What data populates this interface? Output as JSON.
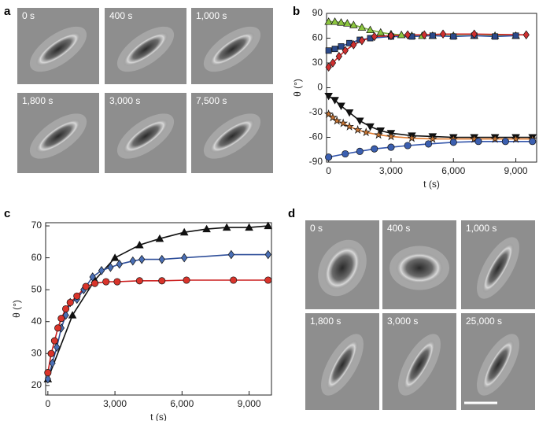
{
  "image_panels": [
    {
      "panel_label": "a",
      "frames": [
        "0 s",
        "400 s",
        "1,000 s",
        "1,800 s",
        "3,000 s",
        "7,500 s"
      ]
    },
    {
      "panel_label": "d",
      "frames": [
        "0 s",
        "400 s",
        "1,000 s",
        "1,800 s",
        "3,000 s",
        "25,000 s"
      ]
    }
  ],
  "chart_data": [
    {
      "type": "scatter",
      "panel_label": "b",
      "x_label": "t (s)",
      "y_label": "θ (°)",
      "xlim": [
        -100,
        10000
      ],
      "ylim": [
        -90,
        90
      ],
      "xticks": [
        0,
        {
          "value": 3000,
          "label": "3,000"
        },
        {
          "value": 6000,
          "label": "6,000"
        },
        {
          "value": 9000,
          "label": "9,000"
        }
      ],
      "yticks": [
        -90,
        -60,
        -30,
        0,
        30,
        60,
        90
      ],
      "series": [
        {
          "marker": "triangle-up",
          "color": "#8cc63f",
          "line_color": "#7cb342",
          "x": [
            0,
            300,
            600,
            900,
            1200,
            1600,
            2000,
            2500,
            3000,
            3500,
            4000,
            4500,
            5000,
            6000,
            7000,
            8000,
            9000
          ],
          "values": [
            80,
            80,
            79,
            78,
            76,
            73,
            70,
            67,
            65,
            64,
            63,
            63,
            63,
            63,
            63,
            63,
            63
          ]
        },
        {
          "marker": "square",
          "color": "#2c4a8a",
          "line_color": "#3355aa",
          "x": [
            0,
            300,
            600,
            1000,
            1500,
            2000,
            3000,
            4000,
            5000,
            6000,
            7000,
            8000,
            9000
          ],
          "values": [
            45,
            47,
            50,
            54,
            58,
            60,
            62,
            62,
            63,
            62,
            63,
            62,
            63
          ]
        },
        {
          "marker": "diamond",
          "color": "#d03030",
          "line_color": "#cc2222",
          "x": [
            0,
            200,
            500,
            800,
            1200,
            1600,
            2200,
            3000,
            3800,
            4600,
            5500,
            7000,
            9500
          ],
          "values": [
            25,
            30,
            38,
            45,
            52,
            57,
            62,
            63,
            64,
            64,
            65,
            65,
            64
          ]
        },
        {
          "marker": "triangle-down",
          "color": "#111111",
          "line_color": "#111111",
          "x": [
            0,
            300,
            600,
            1000,
            1500,
            2000,
            2500,
            3000,
            4000,
            5000,
            6000,
            7000,
            8000,
            9000,
            9800
          ],
          "values": [
            -10,
            -15,
            -22,
            -30,
            -40,
            -47,
            -52,
            -55,
            -58,
            -59,
            -60,
            -60,
            -60,
            -60,
            -60
          ]
        },
        {
          "marker": "star",
          "color": "#c87533",
          "line_color": "#e07b30",
          "x": [
            0,
            200,
            400,
            700,
            1000,
            1400,
            1800,
            2400,
            3000,
            4000,
            5000,
            6000,
            7000,
            8000,
            9000,
            9800
          ],
          "values": [
            -32,
            -36,
            -40,
            -43,
            -47,
            -51,
            -54,
            -57,
            -59,
            -61,
            -62,
            -62,
            -62,
            -62,
            -62,
            -62
          ]
        },
        {
          "marker": "circle",
          "color": "#3b5fb0",
          "line_color": "#3355aa",
          "x": [
            0,
            800,
            1500,
            2200,
            3000,
            3800,
            4800,
            6000,
            7200,
            8500,
            9800
          ],
          "values": [
            -84,
            -80,
            -77,
            -74,
            -72,
            -70,
            -68,
            -66,
            -65,
            -65,
            -65
          ]
        }
      ]
    },
    {
      "type": "scatter",
      "panel_label": "c",
      "x_label": "t (s)",
      "y_label": "θ (°)",
      "xlim": [
        -100,
        10000
      ],
      "ylim": [
        17,
        71
      ],
      "xticks": [
        0,
        {
          "value": 3000,
          "label": "3,000"
        },
        {
          "value": 6000,
          "label": "6,000"
        },
        {
          "value": 9000,
          "label": "9,000"
        }
      ],
      "yticks": [
        20,
        30,
        40,
        50,
        60,
        70
      ],
      "series": [
        {
          "marker": "triangle-up",
          "color": "#111111",
          "line_color": "#111111",
          "x": [
            0,
            1100,
            2100,
            3000,
            4100,
            5000,
            6100,
            7100,
            8000,
            9000,
            9850
          ],
          "values": [
            22,
            42,
            53,
            60,
            64,
            66,
            68,
            69,
            69.5,
            69.5,
            70
          ]
        },
        {
          "marker": "diamond",
          "color": "#4a6fb5",
          "line_color": "#2f4f9a",
          "x": [
            0,
            200,
            400,
            600,
            800,
            1000,
            1300,
            1600,
            2000,
            2400,
            2800,
            3200,
            3800,
            4200,
            5100,
            6100,
            8200,
            9850
          ],
          "values": [
            22,
            27,
            32,
            38,
            42,
            46,
            47,
            50,
            54,
            56,
            57,
            58,
            59,
            59.5,
            59.5,
            60,
            61,
            61
          ]
        },
        {
          "marker": "circle",
          "color": "#d9342b",
          "line_color": "#cc1f1f",
          "x": [
            0,
            150,
            300,
            450,
            600,
            800,
            1000,
            1300,
            1700,
            2100,
            2600,
            3100,
            4100,
            5100,
            6200,
            8300,
            9850
          ],
          "values": [
            24,
            30,
            34,
            38,
            41,
            44,
            46,
            48,
            51,
            52,
            52.5,
            52.5,
            52.8,
            52.8,
            53,
            53,
            53
          ]
        }
      ]
    }
  ]
}
